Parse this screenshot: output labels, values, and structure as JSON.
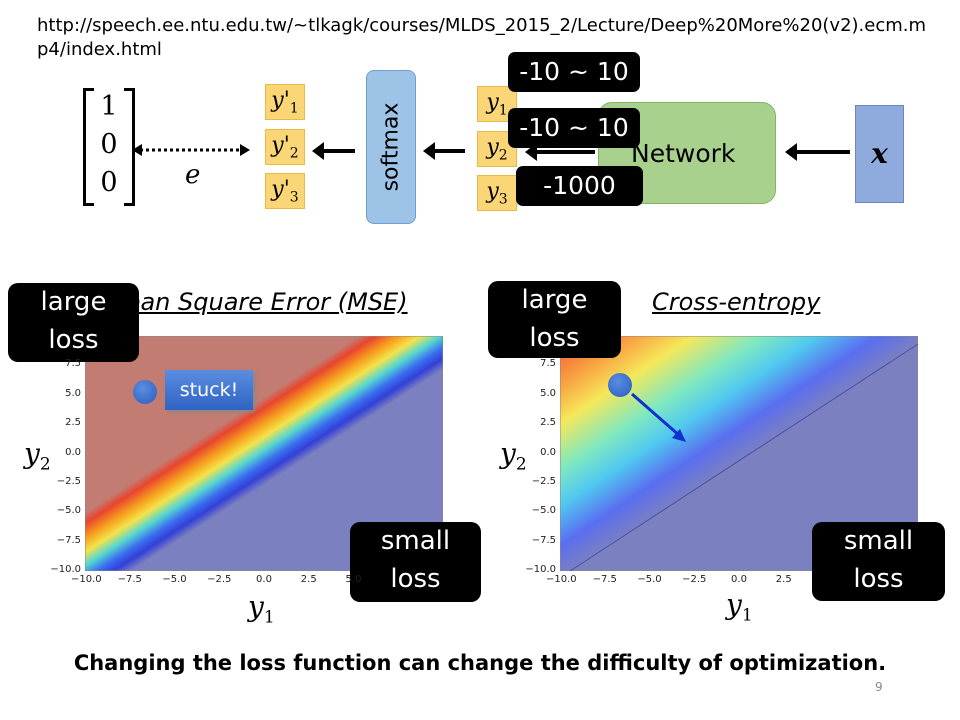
{
  "source_url": "http://speech.ee.ntu.edu.tw/~tlkagk/courses/MLDS_2015_2/Lecture/Deep%20More%20(v2).ecm.mp4/index.html",
  "diagram": {
    "target_vector": [
      "1",
      "0",
      "0"
    ],
    "error_label": "e",
    "softmax_outputs": [
      "y'1",
      "y'2",
      "y'3"
    ],
    "softmax_label": "softmax",
    "network_outputs": [
      "y1",
      "y2",
      "y3"
    ],
    "network_label": "Network",
    "input_label": "x",
    "callouts": [
      "-10 ~ 10",
      "-10 ~ 10",
      "-1000"
    ]
  },
  "plots": [
    {
      "title": "Mean Square Error (MSE)",
      "large_loss": "large\nloss",
      "small_loss": "small\nloss",
      "annotation": "stuck!",
      "xlabel": "y1",
      "ylabel": "y2",
      "xticks": [
        "−10.0",
        "−7.5",
        "−5.0",
        "−2.5",
        "0.0",
        "2.5",
        "5.0"
      ],
      "yticks": [
        "7.5",
        "5.0",
        "2.5",
        "0.0",
        "−2.5",
        "−5.0",
        "−7.5",
        "−10.0"
      ],
      "xlim": [
        -10,
        10
      ],
      "ylim": [
        -10,
        10
      ],
      "colors": {
        "high": "#c27c72",
        "low": "#7b80c0"
      }
    },
    {
      "title": "Cross-entropy",
      "large_loss": "large\nloss",
      "small_loss": "small\nloss",
      "xlabel": "y1",
      "ylabel": "y2",
      "xticks": [
        "−10.0",
        "−7.5",
        "−5.0",
        "−2.5",
        "0.0",
        "2.5"
      ],
      "yticks": [
        "7.5",
        "5.0",
        "2.5",
        "0.0",
        "−2.5",
        "−5.0",
        "−7.5",
        "−10.0"
      ],
      "xlim": [
        -10,
        10
      ],
      "ylim": [
        -10,
        10
      ],
      "colors": {
        "high": "#f0503a",
        "low": "#7b80c0"
      }
    }
  ],
  "caption": "Changing the loss function can change the difficulty of optimization.",
  "page_number": "9"
}
